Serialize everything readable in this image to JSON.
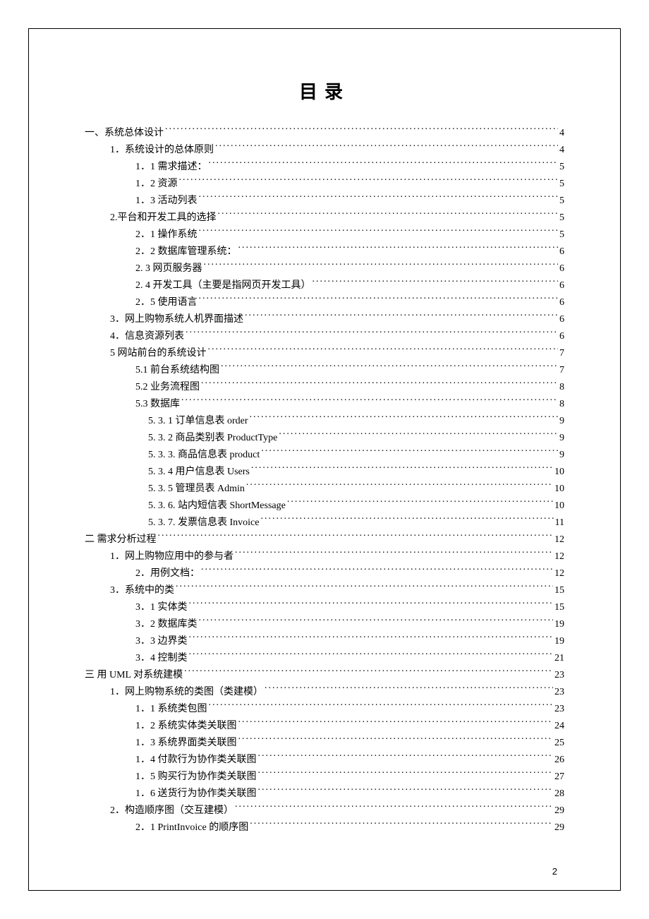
{
  "title": "目录",
  "page_number": "2",
  "toc": [
    {
      "indent": 0,
      "label": "一、系统总体设计",
      "page": "4"
    },
    {
      "indent": 1,
      "label": "1．系统设计的总体原则",
      "page": "4"
    },
    {
      "indent": 2,
      "label": "1．1 需求描述：",
      "page": "5"
    },
    {
      "indent": 2,
      "label": "1．2 资源",
      "page": "5"
    },
    {
      "indent": 2,
      "label": "1．3 活动列表",
      "page": "5"
    },
    {
      "indent": 1,
      "label": "2.平台和开发工具的选择",
      "page": "5"
    },
    {
      "indent": 2,
      "label": "2．1 操作系统",
      "page": "5"
    },
    {
      "indent": 2,
      "label": "2．2 数据库管理系统：",
      "page": "6"
    },
    {
      "indent": 2,
      "label": "2. 3 网页服务器",
      "page": "6"
    },
    {
      "indent": 2,
      "label": "2. 4 开发工具（主要是指网页开发工具）",
      "page": "6"
    },
    {
      "indent": 2,
      "label": "2．5 使用语言",
      "page": "6"
    },
    {
      "indent": 1,
      "label": "3．网上购物系统人机界面描述",
      "page": "6"
    },
    {
      "indent": 1,
      "label": "4．信息资源列表",
      "page": "6"
    },
    {
      "indent": 1,
      "label": "5 网站前台的系统设计",
      "page": "7"
    },
    {
      "indent": 2,
      "label": "5.1 前台系统结构图",
      "page": "7"
    },
    {
      "indent": 2,
      "label": "5.2 业务流程图",
      "page": "8"
    },
    {
      "indent": 2,
      "label": "5.3    数据库",
      "page": "8"
    },
    {
      "indent": 3,
      "label": "5. 3. 1 订单信息表 order",
      "page": "9"
    },
    {
      "indent": 3,
      "label": "5. 3. 2 商品类别表 ProductType",
      "page": "9"
    },
    {
      "indent": 3,
      "label": "5. 3. 3. 商品信息表 product",
      "page": "9"
    },
    {
      "indent": 3,
      "label": "5. 3. 4 用户信息表 Users",
      "page": "10"
    },
    {
      "indent": 3,
      "label": "5. 3. 5 管理员表 Admin",
      "page": "10"
    },
    {
      "indent": 3,
      "label": "5. 3. 6. 站内短信表 ShortMessage",
      "page": "10"
    },
    {
      "indent": 3,
      "label": "5. 3. 7. 发票信息表 Invoice",
      "page": "11"
    },
    {
      "indent": 0,
      "label": "二    需求分析过程",
      "page": "12"
    },
    {
      "indent": 1,
      "label": "1．网上购物应用中的参与者",
      "page": "12"
    },
    {
      "indent": 2,
      "label": "2．用例文档：",
      "page": "12"
    },
    {
      "indent": 1,
      "label": "3．系统中的类",
      "page": "15"
    },
    {
      "indent": 2,
      "label": "3．1 实体类",
      "page": "15"
    },
    {
      "indent": 2,
      "label": "3．2 数据库类",
      "page": "19"
    },
    {
      "indent": 2,
      "label": "3．3 边界类",
      "page": "19"
    },
    {
      "indent": 2,
      "label": "3．4 控制类",
      "page": "21"
    },
    {
      "indent": 0,
      "label": "三    用 UML 对系统建模",
      "page": "23"
    },
    {
      "indent": 1,
      "label": "1．网上购物系统的类图（类建模）",
      "page": "23"
    },
    {
      "indent": 2,
      "label": "1．1 系统类包图",
      "page": "23"
    },
    {
      "indent": 2,
      "label": "1．2 系统实体类关联图",
      "page": "24"
    },
    {
      "indent": 2,
      "label": "1．3 系统界面类关联图",
      "page": "25"
    },
    {
      "indent": 2,
      "label": "1．4 付款行为协作类关联图",
      "page": "26"
    },
    {
      "indent": 2,
      "label": "1．5 购买行为协作类关联图",
      "page": "27"
    },
    {
      "indent": 2,
      "label": "1．6 送货行为协作类关联图",
      "page": "28"
    },
    {
      "indent": 1,
      "label": "2．构造顺序图（交互建模）",
      "page": "29"
    },
    {
      "indent": 2,
      "label": "2．1    PrintInvoice 的顺序图",
      "page": "29"
    }
  ]
}
